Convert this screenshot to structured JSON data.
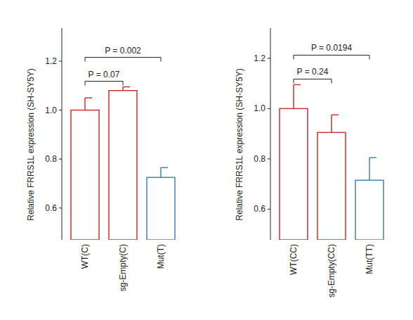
{
  "chart_data": [
    {
      "type": "bar",
      "y_label": "Relative FRRS1L expression (SH-SY5Y)",
      "categories": [
        "WT(C)",
        "sg-Empty(C)",
        "Mut(T)"
      ],
      "values": [
        1.0,
        1.08,
        0.725
      ],
      "errors": [
        0.05,
        0.015,
        0.04
      ],
      "colors": [
        "#cc3333",
        "#cc3333",
        "#4a7fb5"
      ],
      "ylim": [
        0.47,
        1.335
      ],
      "yticks": [
        0.6,
        0.8,
        {
          "value": 1.0,
          "label": "1.0"
        },
        1.2
      ],
      "annotations": [
        {
          "text": "P = 0.07",
          "from": "WT(C)",
          "to": "sg-Empty(C)"
        },
        {
          "text": "P = 0.002",
          "from": "WT(C)",
          "to": "Mut(T)"
        }
      ]
    },
    {
      "type": "bar",
      "y_label": "Relative FRRS1L expression (SH-SY5Y)",
      "categories": [
        "WT(CC)",
        "sg-Empty(CC)",
        "Mut(TT)"
      ],
      "values": [
        1.0,
        0.905,
        0.715
      ],
      "errors": [
        0.095,
        0.07,
        0.09
      ],
      "colors": [
        "#cc3333",
        "#cc3333",
        "#4a7fb5"
      ],
      "ylim": [
        0.478,
        1.32
      ],
      "yticks": [
        0.6,
        0.8,
        {
          "value": 1.0,
          "label": "1.0"
        },
        1.2
      ],
      "annotations": [
        {
          "text": "P = 0.24",
          "from": "WT(CC)",
          "to": "sg-Empty(CC)"
        },
        {
          "text": "P = 0.0194",
          "from": "WT(CC)",
          "to": "Mut(TT)"
        }
      ]
    }
  ]
}
